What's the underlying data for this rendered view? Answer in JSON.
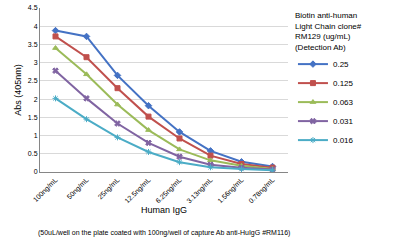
{
  "chart_data": {
    "type": "line",
    "y_label": "Abs (405nm)",
    "x_label": "Human IgG",
    "note": "(50uL/well on the plate coated with 100ng/well of capture Ab anti-HuIgG #RM116)",
    "legend_title": "Biotin anti-human Light Chain clone# RM129 (ug/mL) (Detection Ab)",
    "categories": [
      "100ng/mL",
      "50ng/mL",
      "25ng/mL",
      "12.5ng/mL",
      "6.25ng/mL",
      "3.13ng/mL",
      "1.56ng/mL",
      "0.78ng/mL"
    ],
    "series": [
      {
        "name": "0.25",
        "color": "#4472c4",
        "marker": "diamond",
        "values": [
          3.88,
          3.72,
          2.65,
          1.82,
          1.1,
          0.58,
          0.28,
          0.15
        ]
      },
      {
        "name": "0.125",
        "color": "#c0504d",
        "marker": "square",
        "values": [
          3.72,
          3.15,
          2.3,
          1.52,
          0.92,
          0.45,
          0.22,
          0.12
        ]
      },
      {
        "name": "0.063",
        "color": "#9bbb59",
        "marker": "triangle-up",
        "values": [
          3.4,
          2.68,
          1.85,
          1.15,
          0.62,
          0.32,
          0.17,
          0.08
        ]
      },
      {
        "name": "0.031",
        "color": "#8064a2",
        "marker": "x",
        "values": [
          2.78,
          2.02,
          1.33,
          0.8,
          0.42,
          0.2,
          0.12,
          0.07
        ]
      },
      {
        "name": "0.016",
        "color": "#4bacc6",
        "marker": "asterisk-open",
        "values": [
          2.02,
          1.45,
          0.95,
          0.55,
          0.27,
          0.13,
          0.08,
          0.05
        ]
      }
    ],
    "ylim": [
      0,
      4.5
    ],
    "yticks": [
      0,
      0.5,
      1,
      1.5,
      2,
      2.5,
      3,
      3.5,
      4,
      4.5
    ],
    "grid": true,
    "legend": "right",
    "line_style": "solid"
  }
}
